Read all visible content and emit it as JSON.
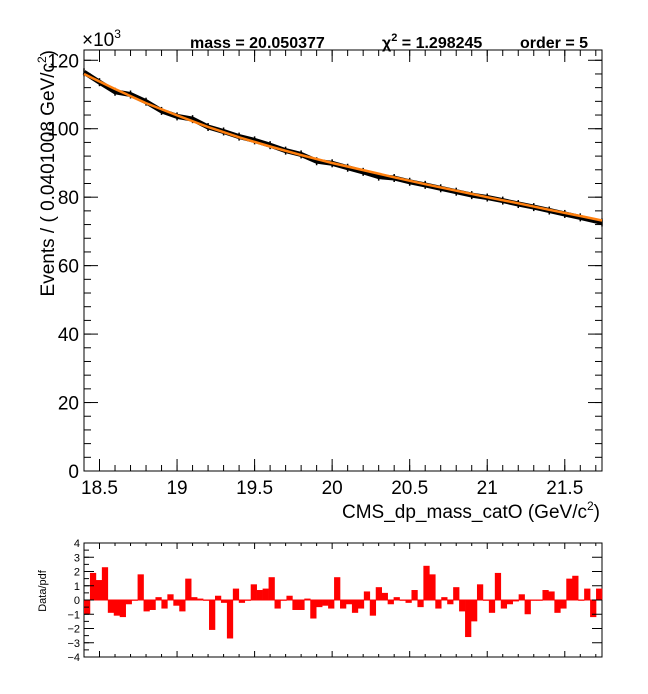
{
  "header": {
    "exponent_base": "×10",
    "exponent_power": "3",
    "mass_label": "mass = 20.050377",
    "chi_symbol": "χ",
    "chi_power": "2",
    "chi_value": " = 1.298245",
    "order_label": "order = 5"
  },
  "colors": {
    "data": "#000000",
    "fit": "#ff7f0e",
    "residual_bars": "#ff0000",
    "frame": "#000000",
    "background": "#ffffff"
  },
  "chart_data": [
    {
      "type": "line",
      "xlabel": "CMS_dp_mass_catO (GeV/c",
      "xlabel_power": "2",
      "xlabel_tail": ")",
      "ylabel": "Events / ( 0.0401008 GeV/c",
      "ylabel_power": "2",
      "ylabel_tail": ")",
      "y_scale_note": "×10^3",
      "xlim": [
        18.4,
        21.74
      ],
      "ylim": [
        0,
        123
      ],
      "x_ticks": [
        "18.5",
        "19",
        "19.5",
        "20",
        "20.5",
        "21",
        "21.5"
      ],
      "y_ticks": [
        "0",
        "20",
        "40",
        "60",
        "80",
        "100",
        "120"
      ],
      "grid": false,
      "series": [
        {
          "role": "data",
          "x": [
            18.4,
            18.5,
            18.6,
            18.7,
            18.8,
            18.9,
            19.0,
            19.1,
            19.2,
            19.3,
            19.4,
            19.5,
            19.6,
            19.7,
            19.8,
            19.9,
            20.0,
            20.1,
            20.2,
            20.3,
            20.4,
            20.5,
            20.6,
            20.7,
            20.8,
            20.9,
            21.0,
            21.1,
            21.2,
            21.3,
            21.4,
            21.5,
            21.6,
            21.74
          ],
          "y": [
            116.5,
            113.6,
            110.8,
            110.0,
            107.9,
            105.2,
            103.6,
            102.8,
            100.5,
            99.2,
            97.7,
            96.6,
            95.2,
            93.6,
            92.5,
            90.5,
            89.9,
            88.6,
            87.4,
            86.0,
            85.6,
            84.5,
            83.6,
            82.6,
            81.6,
            80.6,
            79.9,
            79.0,
            78.0,
            77.1,
            76.1,
            75.1,
            74.1,
            72.6
          ]
        },
        {
          "role": "fit",
          "x": [
            18.4,
            18.6,
            18.8,
            19.0,
            19.2,
            19.4,
            19.6,
            19.8,
            20.0,
            20.2,
            20.4,
            20.6,
            20.8,
            21.0,
            21.2,
            21.4,
            21.6,
            21.74
          ],
          "y": [
            116.0,
            111.6,
            107.5,
            103.9,
            100.5,
            97.5,
            94.8,
            92.3,
            90.0,
            87.9,
            85.8,
            83.8,
            81.9,
            80.0,
            78.2,
            76.3,
            74.5,
            73.2
          ]
        }
      ]
    },
    {
      "type": "bar",
      "ylabel": "Data/pdf",
      "xlim": [
        18.4,
        21.74
      ],
      "ylim": [
        -4,
        4
      ],
      "y_ticks": [
        "−4",
        "−3",
        "−2",
        "−1",
        "0",
        "1",
        "2",
        "3",
        "4"
      ],
      "grid": false,
      "bar_width": 0.0401008,
      "values": [
        -1.0,
        1.9,
        1.4,
        2.3,
        -0.9,
        -1.1,
        -1.2,
        -0.3,
        0.0,
        1.8,
        -0.8,
        -0.7,
        0.2,
        -0.6,
        0.4,
        -0.4,
        -0.8,
        1.5,
        0.2,
        0.1,
        0.0,
        -2.1,
        0.3,
        -0.2,
        -2.7,
        0.8,
        -0.2,
        0.0,
        1.1,
        0.7,
        0.8,
        1.6,
        -0.6,
        0.0,
        0.3,
        -0.7,
        -0.7,
        0.1,
        -1.3,
        -0.5,
        -0.4,
        -0.6,
        1.6,
        -0.6,
        -0.3,
        -0.9,
        -0.6,
        0.6,
        -1.1,
        0.9,
        0.5,
        -0.3,
        0.2,
        0.0,
        -0.2,
        0.7,
        -0.5,
        2.4,
        1.8,
        -0.6,
        0.2,
        -0.3,
        0.9,
        -0.8,
        -2.6,
        -1.5,
        1.1,
        0.0,
        -0.9,
        1.9,
        -0.6,
        -0.3,
        -0.1,
        0.4,
        -1.0,
        0.0,
        0.0,
        0.7,
        0.6,
        -0.9,
        -0.6,
        1.5,
        1.7,
        0.0,
        0.8,
        -1.2,
        0.8
      ]
    }
  ]
}
